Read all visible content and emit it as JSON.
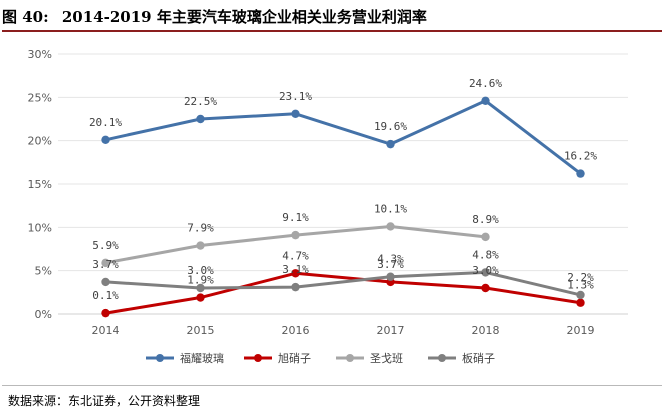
{
  "header": {
    "figure_label": "图 40:",
    "title": "2014-2019 年主要汽车玻璃企业相关业务营业利润率"
  },
  "source": "数据来源：东北证券，公开资料整理",
  "chart_data": {
    "type": "line",
    "categories": [
      "2014",
      "2015",
      "2016",
      "2017",
      "2018",
      "2019"
    ],
    "y_ticks": [
      "0%",
      "5%",
      "10%",
      "15%",
      "20%",
      "25%",
      "30%"
    ],
    "ylim": [
      0,
      30
    ],
    "grid": true,
    "legend_position": "bottom",
    "series": [
      {
        "name": "福耀玻璃",
        "color": "#4472a8",
        "values": [
          20.1,
          22.5,
          23.1,
          19.6,
          24.6,
          16.2
        ],
        "labels": [
          "20.1%",
          "22.5%",
          "23.1%",
          "19.6%",
          "24.6%",
          "16.2%"
        ]
      },
      {
        "name": "旭硝子",
        "color": "#c00000",
        "values": [
          0.1,
          1.9,
          4.7,
          3.7,
          3.0,
          1.3
        ],
        "labels": [
          "0.1%",
          "1.9%",
          "4.7%",
          "3.7%",
          "3.0%",
          "1.3%"
        ]
      },
      {
        "name": "圣戈班",
        "color": "#a6a6a6",
        "values": [
          5.9,
          7.9,
          9.1,
          10.1,
          8.9,
          null
        ],
        "labels": [
          "5.9%",
          "7.9%",
          "9.1%",
          "10.1%",
          "8.9%",
          null
        ]
      },
      {
        "name": "板硝子",
        "color": "#7f7f7f",
        "values": [
          3.7,
          3.0,
          3.1,
          4.3,
          4.8,
          2.2
        ],
        "labels": [
          "3.7%",
          "3.0%",
          "3.1%",
          "4.3%",
          "4.8%",
          "2.2%"
        ]
      }
    ]
  }
}
